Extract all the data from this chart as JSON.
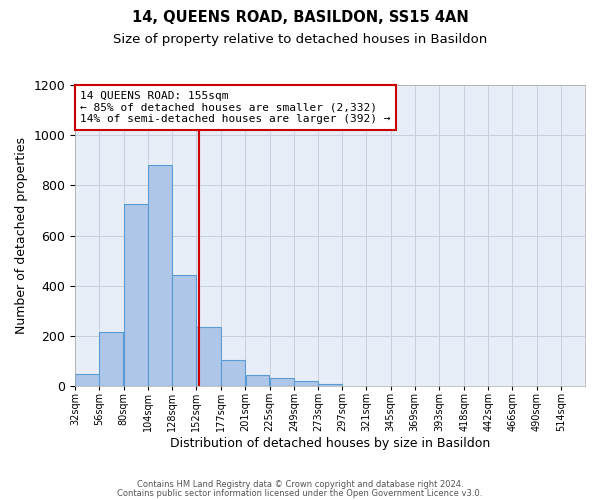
{
  "title": "14, QUEENS ROAD, BASILDON, SS15 4AN",
  "subtitle": "Size of property relative to detached houses in Basildon",
  "xlabel": "Distribution of detached houses by size in Basildon",
  "ylabel": "Number of detached properties",
  "bar_left_edges": [
    32,
    56,
    80,
    104,
    128,
    152,
    177,
    201,
    225,
    249,
    273,
    297,
    321,
    345,
    369,
    393,
    418,
    442,
    466,
    490
  ],
  "bar_widths": [
    24,
    24,
    24,
    24,
    24,
    25,
    24,
    24,
    24,
    24,
    24,
    24,
    24,
    24,
    24,
    25,
    24,
    24,
    24,
    24
  ],
  "bar_heights": [
    50,
    215,
    725,
    880,
    445,
    235,
    105,
    45,
    35,
    20,
    10,
    0,
    0,
    0,
    0,
    0,
    0,
    0,
    0,
    0
  ],
  "bar_color": "#aec6e8",
  "bar_edge_color": "#5b9bd5",
  "vline_x": 155,
  "vline_color": "#cc0000",
  "annotation_text_line1": "14 QUEENS ROAD: 155sqm",
  "annotation_text_line2": "← 85% of detached houses are smaller (2,332)",
  "annotation_text_line3": "14% of semi-detached houses are larger (392) →",
  "annotation_box_color": "#cc0000",
  "ylim": [
    0,
    1200
  ],
  "xlim": [
    32,
    538
  ],
  "tick_labels": [
    "32sqm",
    "56sqm",
    "80sqm",
    "104sqm",
    "128sqm",
    "152sqm",
    "177sqm",
    "201sqm",
    "225sqm",
    "249sqm",
    "273sqm",
    "297sqm",
    "321sqm",
    "345sqm",
    "369sqm",
    "393sqm",
    "418sqm",
    "442sqm",
    "466sqm",
    "490sqm",
    "514sqm"
  ],
  "tick_positions": [
    32,
    56,
    80,
    104,
    128,
    152,
    177,
    201,
    225,
    249,
    273,
    297,
    321,
    345,
    369,
    393,
    418,
    442,
    466,
    490,
    514
  ],
  "footer_line1": "Contains HM Land Registry data © Crown copyright and database right 2024.",
  "footer_line2": "Contains public sector information licensed under the Open Government Licence v3.0.",
  "background_color": "#ffffff",
  "plot_bg_color": "#e8eef8",
  "grid_color": "#c8d0dd",
  "title_fontsize": 10.5,
  "subtitle_fontsize": 9.5,
  "axis_label_fontsize": 9,
  "tick_fontsize": 7,
  "annotation_fontsize": 8,
  "footer_fontsize": 6
}
